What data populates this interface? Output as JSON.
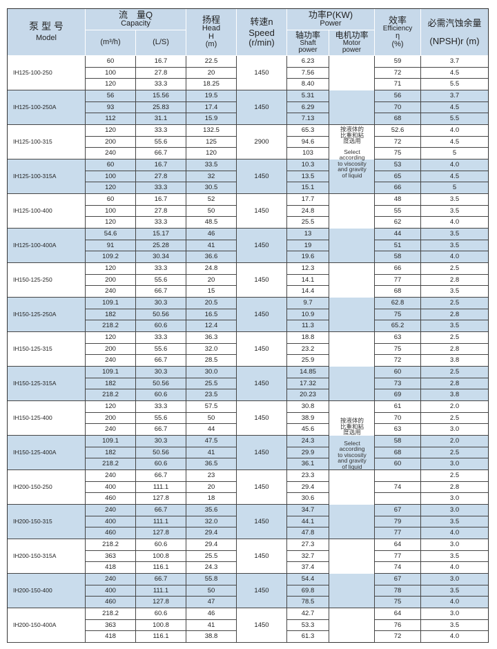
{
  "header": {
    "model_cn": "泵 型 号",
    "model_en": "Model",
    "capacity_cn": "流　量Q",
    "capacity_en": "Capacity",
    "capacity_m3h": "(m³/h)",
    "capacity_ls": "(L/S)",
    "head_cn": "扬程",
    "head_en": "Head",
    "head_sym": "H",
    "head_unit": "(m)",
    "speed_cn": "转速n",
    "speed_en": "Speed",
    "speed_unit": "(r/min)",
    "power_cn": "功率P(KW)",
    "power_en": "Power",
    "shaft_cn": "轴功率",
    "shaft_en": "Shaft power",
    "motor_cn": "电机功率",
    "motor_en": "Motor power",
    "eff_cn": "效率",
    "eff_en": "Efficiency",
    "eff_sym": "η",
    "eff_unit": "(%)",
    "npsh_cn": "必需汽蚀余量",
    "npsh_en": "(NPSH)r (m)"
  },
  "motor_note": {
    "cn": "按液体的比重和粘度选用",
    "en": "Select according to viscosity and gravity of liquid"
  },
  "colors": {
    "header_bg": "#c7d9ea",
    "alt_row_bg": "#c9dcec",
    "border": "#333333"
  },
  "groups": [
    {
      "model": "IH125-100-250",
      "speed": "1450",
      "rows": [
        [
          "60",
          "16.7",
          "22.5",
          "6.23",
          "59",
          "3.7"
        ],
        [
          "100",
          "27.8",
          "20",
          "7.56",
          "72",
          "4.5"
        ],
        [
          "120",
          "33.3",
          "18.25",
          "8.40",
          "71",
          "5.5"
        ]
      ]
    },
    {
      "model": "IH125-100-250A",
      "speed": "1450",
      "rows": [
        [
          "56",
          "15.56",
          "19.5",
          "5.31",
          "56",
          "3.7"
        ],
        [
          "93",
          "25.83",
          "17.4",
          "6.29",
          "70",
          "4.5"
        ],
        [
          "112",
          "31.1",
          "15.9",
          "7.13",
          "68",
          "5.5"
        ]
      ]
    },
    {
      "model": "IH125-100-315",
      "speed": "2900",
      "rows": [
        [
          "120",
          "33.3",
          "132.5",
          "65.3",
          "52.6",
          "4.0"
        ],
        [
          "200",
          "55.6",
          "125",
          "94.6",
          "72",
          "4.5"
        ],
        [
          "240",
          "66.7",
          "120",
          "103",
          "75",
          "5"
        ]
      ]
    },
    {
      "model": "IH125-100-315A",
      "speed": "1450",
      "rows": [
        [
          "60",
          "16.7",
          "33.5",
          "10.3",
          "53",
          "4.0"
        ],
        [
          "100",
          "27.8",
          "32",
          "13.5",
          "65",
          "4.5"
        ],
        [
          "120",
          "33.3",
          "30.5",
          "15.1",
          "66",
          "5"
        ]
      ]
    },
    {
      "model": "IH125-100-400",
      "speed": "1450",
      "rows": [
        [
          "60",
          "16.7",
          "52",
          "17.7",
          "48",
          "3.5"
        ],
        [
          "100",
          "27.8",
          "50",
          "24.8",
          "55",
          "3.5"
        ],
        [
          "120",
          "33.3",
          "48.5",
          "25.5",
          "62",
          "4.0"
        ]
      ]
    },
    {
      "model": "IH125-100-400A",
      "speed": "1450",
      "rows": [
        [
          "54.6",
          "15.17",
          "46",
          "13",
          "44",
          "3.5"
        ],
        [
          "91",
          "25.28",
          "41",
          "19",
          "51",
          "3.5"
        ],
        [
          "109.2",
          "30.34",
          "36.6",
          "19.6",
          "58",
          "4.0"
        ]
      ]
    },
    {
      "model": "IH150-125-250",
      "speed": "1450",
      "rows": [
        [
          "120",
          "33.3",
          "24.8",
          "12.3",
          "66",
          "2.5"
        ],
        [
          "200",
          "55.6",
          "20",
          "14.1",
          "77",
          "2.8"
        ],
        [
          "240",
          "66.7",
          "15",
          "14.4",
          "68",
          "3.5"
        ]
      ]
    },
    {
      "model": "IH150-125-250A",
      "speed": "1450",
      "rows": [
        [
          "109.1",
          "30.3",
          "20.5",
          "9.7",
          "62.8",
          "2.5"
        ],
        [
          "182",
          "50.56",
          "16.5",
          "10.9",
          "75",
          "2.8"
        ],
        [
          "218.2",
          "60.6",
          "12.4",
          "11.3",
          "65.2",
          "3.5"
        ]
      ]
    },
    {
      "model": "IH150-125-315",
      "speed": "1450",
      "rows": [
        [
          "120",
          "33.3",
          "36.3",
          "18.8",
          "63",
          "2.5"
        ],
        [
          "200",
          "55.6",
          "32.0",
          "23.2",
          "75",
          "2.8"
        ],
        [
          "240",
          "66.7",
          "28.5",
          "25.9",
          "72",
          "3.8"
        ]
      ]
    },
    {
      "model": "IH150-125-315A",
      "speed": "1450",
      "rows": [
        [
          "109.1",
          "30.3",
          "30.0",
          "14.85",
          "60",
          "2.5"
        ],
        [
          "182",
          "50.56",
          "25.5",
          "17.32",
          "73",
          "2.8"
        ],
        [
          "218.2",
          "60.6",
          "23.5",
          "20.23",
          "69",
          "3.8"
        ]
      ]
    },
    {
      "model": "IH150-125-400",
      "speed": "1450",
      "rows": [
        [
          "120",
          "33.3",
          "57.5",
          "30.8",
          "61",
          "2.0"
        ],
        [
          "200",
          "55.6",
          "50",
          "38.9",
          "70",
          "2.5"
        ],
        [
          "240",
          "66.7",
          "44",
          "45.6",
          "63",
          "3.0"
        ]
      ]
    },
    {
      "model": "IH150-125-400A",
      "speed": "1450",
      "rows": [
        [
          "109.1",
          "30.3",
          "47.5",
          "24.3",
          "58",
          "2.0"
        ],
        [
          "182",
          "50.56",
          "41",
          "29.9",
          "68",
          "2.5"
        ],
        [
          "218.2",
          "60.6",
          "36.5",
          "36.1",
          "60",
          "3.0"
        ]
      ]
    },
    {
      "model": "IH200-150-250",
      "speed": "1450",
      "rows": [
        [
          "240",
          "66.7",
          "23",
          "23.3",
          "",
          "2.5"
        ],
        [
          "400",
          "111.1",
          "20",
          "29.4",
          "74",
          "2.8"
        ],
        [
          "460",
          "127.8",
          "18",
          "30.6",
          "",
          "3.0"
        ]
      ]
    },
    {
      "model": "IH200-150-315",
      "speed": "1450",
      "rows": [
        [
          "240",
          "66.7",
          "35.6",
          "34.7",
          "67",
          "3.0"
        ],
        [
          "400",
          "111.1",
          "32.0",
          "44.1",
          "79",
          "3.5"
        ],
        [
          "460",
          "127.8",
          "29.4",
          "47.8",
          "77",
          "4.0"
        ]
      ]
    },
    {
      "model": "IH200-150-315A",
      "speed": "1450",
      "rows": [
        [
          "218.2",
          "60.6",
          "29.4",
          "27.3",
          "64",
          "3.0"
        ],
        [
          "363",
          "100.8",
          "25.5",
          "32.7",
          "77",
          "3.5"
        ],
        [
          "418",
          "116.1",
          "24.3",
          "37.4",
          "74",
          "4.0"
        ]
      ]
    },
    {
      "model": "IH200-150-400",
      "speed": "1450",
      "rows": [
        [
          "240",
          "66.7",
          "55.8",
          "54.4",
          "67",
          "3.0"
        ],
        [
          "400",
          "111.1",
          "50",
          "69.8",
          "78",
          "3.5"
        ],
        [
          "460",
          "127.8",
          "47",
          "78.5",
          "75",
          "4.0"
        ]
      ]
    },
    {
      "model": "IH200-150-400A",
      "speed": "1450",
      "rows": [
        [
          "218.2",
          "60.6",
          "46",
          "42.7",
          "64",
          "3.0"
        ],
        [
          "363",
          "100.8",
          "41",
          "53.3",
          "76",
          "3.5"
        ],
        [
          "418",
          "116.1",
          "38.8",
          "61.3",
          "72",
          "4.0"
        ]
      ]
    }
  ]
}
